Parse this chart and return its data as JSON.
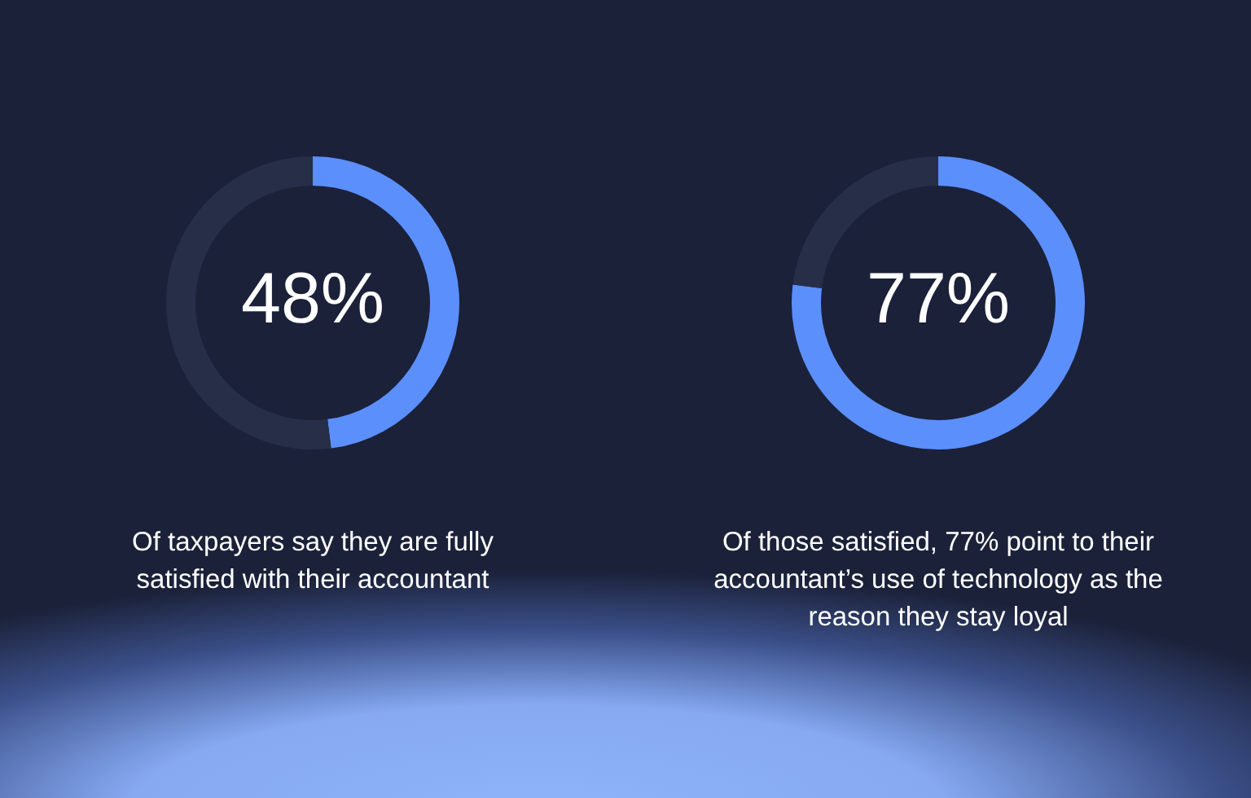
{
  "chart_data": [
    {
      "type": "donut",
      "categories": [
        null,
        null
      ],
      "values": [
        48,
        52
      ],
      "colors": [
        "#5b8ffc",
        "#262e48"
      ],
      "value_labels": [
        "48%",
        null
      ],
      "annotations": [
        "Of taxpayers say they are fully satisfied with their accountant"
      ]
    },
    {
      "type": "donut",
      "categories": [
        null,
        null
      ],
      "values": [
        77,
        23
      ],
      "colors": [
        "#5b8ffc",
        "#262e48"
      ],
      "value_labels": [
        "77%",
        null
      ],
      "annotations": [
        "Of those satisfied, 77% point to their accountant’s use of technology as the reason they stay loyal"
      ]
    }
  ]
}
